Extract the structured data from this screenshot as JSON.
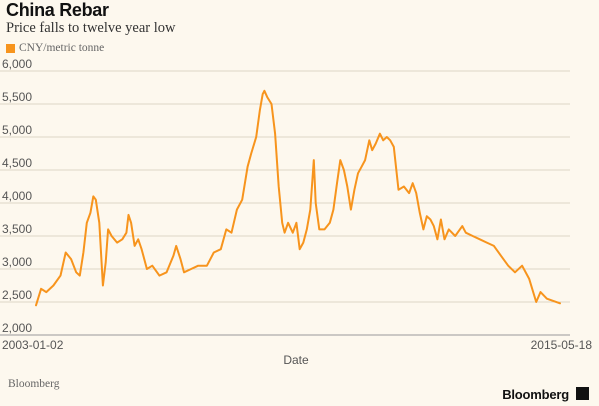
{
  "chart_data": {
    "type": "line",
    "title": "China Rebar",
    "subtitle": "Price falls to twelve year low",
    "xlabel": "Date",
    "ylabel": "",
    "x_tick_labels": [
      "2003-01-02",
      "2015-05-18"
    ],
    "y_ticks": [
      2000,
      2500,
      3000,
      3500,
      4000,
      4500,
      5000,
      5500,
      6000
    ],
    "y_tick_labels": [
      "2,000",
      "2,500",
      "3,000",
      "3,500",
      "4,000",
      "4,500",
      "5,000",
      "5,500",
      "6,000"
    ],
    "ylim": [
      2000,
      6000
    ],
    "xlim": [
      "2003-01-02",
      "2015-05-18"
    ],
    "grid": true,
    "legend_placement": "top-left",
    "source": "Bloomberg",
    "series": [
      {
        "name": "CNY/metric tonne",
        "color": "#f7941d",
        "points": [
          [
            "2003-01-02",
            2450
          ],
          [
            "2003-02-15",
            2700
          ],
          [
            "2003-04-01",
            2650
          ],
          [
            "2003-06-01",
            2750
          ],
          [
            "2003-08-01",
            2900
          ],
          [
            "2003-09-15",
            3250
          ],
          [
            "2003-11-01",
            3150
          ],
          [
            "2003-12-15",
            2950
          ],
          [
            "2004-01-15",
            2900
          ],
          [
            "2004-02-15",
            3250
          ],
          [
            "2004-03-15",
            3700
          ],
          [
            "2004-04-15",
            3850
          ],
          [
            "2004-05-10",
            4100
          ],
          [
            "2004-06-01",
            4050
          ],
          [
            "2004-07-01",
            3700
          ],
          [
            "2004-08-01",
            2750
          ],
          [
            "2004-08-25",
            3100
          ],
          [
            "2004-09-15",
            3600
          ],
          [
            "2004-10-15",
            3500
          ],
          [
            "2004-12-01",
            3400
          ],
          [
            "2005-01-15",
            3450
          ],
          [
            "2005-02-20",
            3550
          ],
          [
            "2005-03-10",
            3820
          ],
          [
            "2005-04-01",
            3700
          ],
          [
            "2005-05-01",
            3350
          ],
          [
            "2005-06-01",
            3450
          ],
          [
            "2005-07-01",
            3300
          ],
          [
            "2005-08-15",
            3000
          ],
          [
            "2005-10-01",
            3050
          ],
          [
            "2005-12-01",
            2900
          ],
          [
            "2006-02-01",
            2950
          ],
          [
            "2006-04-01",
            3200
          ],
          [
            "2006-04-25",
            3350
          ],
          [
            "2006-06-01",
            3150
          ],
          [
            "2006-07-01",
            2950
          ],
          [
            "2006-09-01",
            3000
          ],
          [
            "2006-11-01",
            3050
          ],
          [
            "2007-01-15",
            3050
          ],
          [
            "2007-03-15",
            3250
          ],
          [
            "2007-05-15",
            3300
          ],
          [
            "2007-07-01",
            3600
          ],
          [
            "2007-08-15",
            3550
          ],
          [
            "2007-10-01",
            3900
          ],
          [
            "2007-11-15",
            4050
          ],
          [
            "2008-01-01",
            4550
          ],
          [
            "2008-02-01",
            4750
          ],
          [
            "2008-03-15",
            5000
          ],
          [
            "2008-04-15",
            5400
          ],
          [
            "2008-05-10",
            5650
          ],
          [
            "2008-05-25",
            5700
          ],
          [
            "2008-06-20",
            5600
          ],
          [
            "2008-07-25",
            5500
          ],
          [
            "2008-08-25",
            5050
          ],
          [
            "2008-09-25",
            4250
          ],
          [
            "2008-10-25",
            3700
          ],
          [
            "2008-11-15",
            3550
          ],
          [
            "2008-12-15",
            3700
          ],
          [
            "2009-01-25",
            3550
          ],
          [
            "2009-02-25",
            3700
          ],
          [
            "2009-03-25",
            3300
          ],
          [
            "2009-04-25",
            3400
          ],
          [
            "2009-05-25",
            3600
          ],
          [
            "2009-06-25",
            3900
          ],
          [
            "2009-07-25",
            4650
          ],
          [
            "2009-08-10",
            4000
          ],
          [
            "2009-09-10",
            3600
          ],
          [
            "2009-10-25",
            3600
          ],
          [
            "2009-12-10",
            3700
          ],
          [
            "2010-01-10",
            3900
          ],
          [
            "2010-02-10",
            4300
          ],
          [
            "2010-03-10",
            4650
          ],
          [
            "2010-04-10",
            4500
          ],
          [
            "2010-05-10",
            4250
          ],
          [
            "2010-06-10",
            3900
          ],
          [
            "2010-07-10",
            4200
          ],
          [
            "2010-08-10",
            4450
          ],
          [
            "2010-09-10",
            4550
          ],
          [
            "2010-10-10",
            4650
          ],
          [
            "2010-11-15",
            4950
          ],
          [
            "2010-12-10",
            4800
          ],
          [
            "2011-01-10",
            4900
          ],
          [
            "2011-02-15",
            5050
          ],
          [
            "2011-03-15",
            4950
          ],
          [
            "2011-04-15",
            5000
          ],
          [
            "2011-05-15",
            4950
          ],
          [
            "2011-06-15",
            4850
          ],
          [
            "2011-07-25",
            4200
          ],
          [
            "2011-09-10",
            4250
          ],
          [
            "2011-10-25",
            4150
          ],
          [
            "2011-11-25",
            4300
          ],
          [
            "2011-12-25",
            4150
          ],
          [
            "2012-01-25",
            3850
          ],
          [
            "2012-02-25",
            3600
          ],
          [
            "2012-03-25",
            3800
          ],
          [
            "2012-04-25",
            3750
          ],
          [
            "2012-05-25",
            3650
          ],
          [
            "2012-06-25",
            3450
          ],
          [
            "2012-07-25",
            3750
          ],
          [
            "2012-08-25",
            3450
          ],
          [
            "2012-10-01",
            3600
          ],
          [
            "2012-11-25",
            3500
          ],
          [
            "2013-01-25",
            3650
          ],
          [
            "2013-02-25",
            3550
          ],
          [
            "2013-04-25",
            3500
          ],
          [
            "2013-06-25",
            3450
          ],
          [
            "2013-08-25",
            3400
          ],
          [
            "2013-10-25",
            3350
          ],
          [
            "2013-12-25",
            3200
          ],
          [
            "2014-02-25",
            3050
          ],
          [
            "2014-04-25",
            2950
          ],
          [
            "2014-06-25",
            3050
          ],
          [
            "2014-08-25",
            2850
          ],
          [
            "2014-10-25",
            2500
          ],
          [
            "2014-12-01",
            2650
          ],
          [
            "2015-01-25",
            2550
          ],
          [
            "2015-05-18",
            2480
          ]
        ]
      }
    ]
  }
}
